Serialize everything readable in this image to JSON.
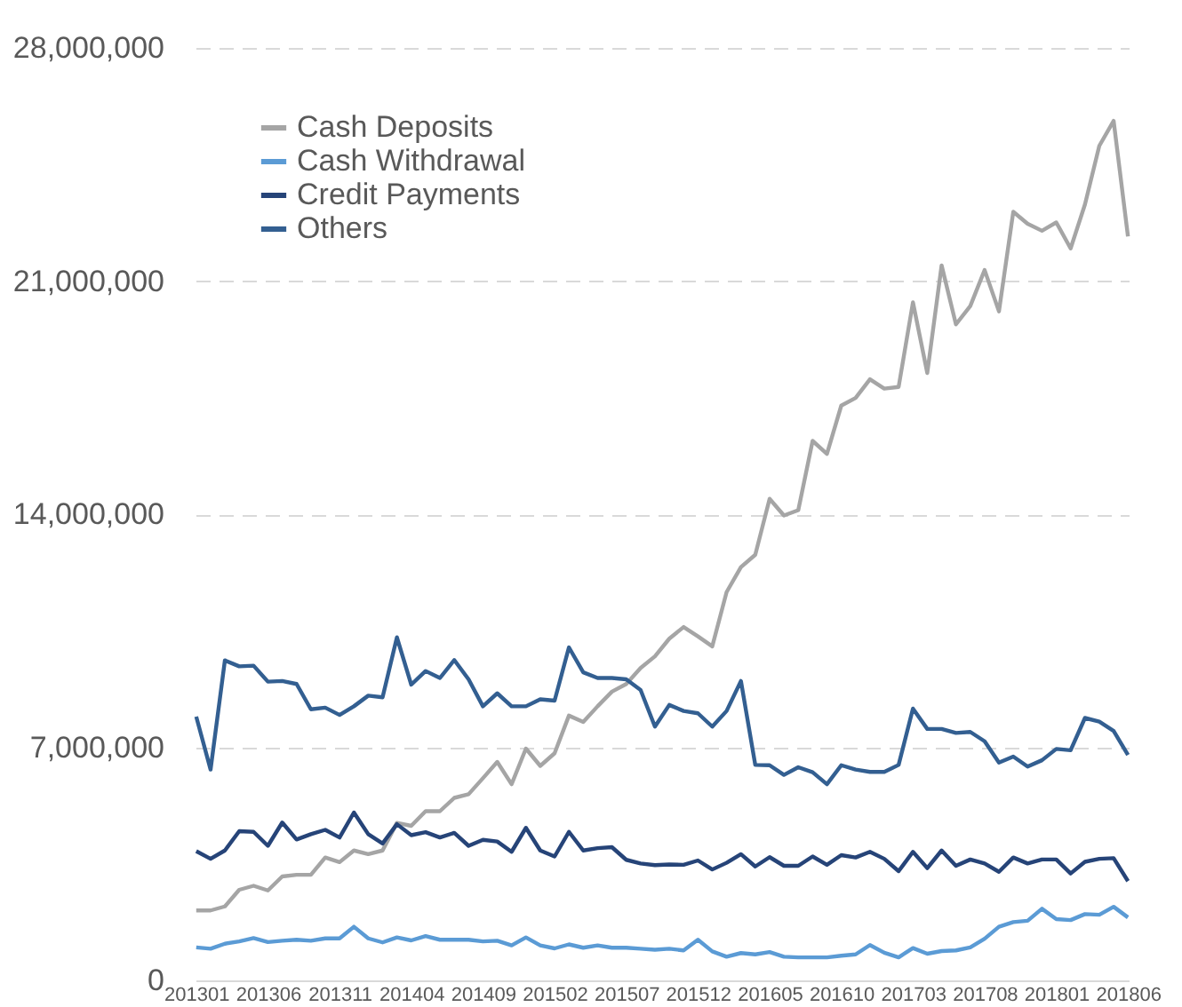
{
  "chart_data": {
    "type": "line",
    "categories": [
      "201301",
      null,
      null,
      null,
      null,
      "201306",
      null,
      null,
      null,
      null,
      "201311",
      null,
      null,
      null,
      null,
      "201404",
      null,
      null,
      null,
      null,
      "201409",
      null,
      null,
      null,
      null,
      "201502",
      null,
      null,
      null,
      null,
      "201507",
      null,
      null,
      null,
      null,
      "201512",
      null,
      null,
      null,
      null,
      "201605",
      null,
      null,
      null,
      null,
      "201610",
      null,
      null,
      null,
      null,
      "201703",
      null,
      null,
      null,
      null,
      "201708",
      null,
      null,
      null,
      null,
      "201801",
      null,
      null,
      null,
      null,
      "201806"
    ],
    "series": [
      {
        "name": "Cash Deposits",
        "color": "#a5a5a5",
        "values": [
          2100000,
          2100000,
          2220000,
          2720000,
          2840000,
          2700000,
          3120000,
          3170000,
          3170000,
          3690000,
          3550000,
          3900000,
          3790000,
          3900000,
          4730000,
          4640000,
          5080000,
          5080000,
          5480000,
          5590000,
          6070000,
          6560000,
          5890000,
          6960000,
          6440000,
          6820000,
          7950000,
          7760000,
          8230000,
          8670000,
          8900000,
          9380000,
          9730000,
          10260000,
          10610000,
          10330000,
          10030000,
          11660000,
          12410000,
          12780000,
          14460000,
          13960000,
          14120000,
          16200000,
          15810000,
          17260000,
          17490000,
          18050000,
          17770000,
          17820000,
          20360000,
          18240000,
          21470000,
          19700000,
          20250000,
          21330000,
          20090000,
          23080000,
          22720000,
          22510000,
          22760000,
          21980000,
          23300000,
          25060000,
          25810000,
          22340000
        ]
      },
      {
        "name": "Cash Withdrawal",
        "color": "#5b9bd5",
        "values": [
          990000,
          950000,
          1100000,
          1170000,
          1270000,
          1150000,
          1190000,
          1220000,
          1190000,
          1260000,
          1260000,
          1610000,
          1260000,
          1140000,
          1290000,
          1200000,
          1330000,
          1220000,
          1220000,
          1220000,
          1170000,
          1190000,
          1050000,
          1290000,
          1050000,
          960000,
          1080000,
          980000,
          1050000,
          980000,
          980000,
          950000,
          920000,
          950000,
          900000,
          1220000,
          870000,
          710000,
          820000,
          780000,
          850000,
          710000,
          690000,
          690000,
          690000,
          740000,
          780000,
          1060000,
          830000,
          690000,
          970000,
          800000,
          880000,
          900000,
          990000,
          1250000,
          1610000,
          1750000,
          1790000,
          2150000,
          1840000,
          1810000,
          1990000,
          1970000,
          2210000,
          1890000
        ]
      },
      {
        "name": "Credit Payments",
        "color": "#264478",
        "values": [
          3880000,
          3650000,
          3900000,
          4480000,
          4460000,
          4040000,
          4740000,
          4230000,
          4390000,
          4520000,
          4290000,
          5040000,
          4390000,
          4110000,
          4690000,
          4360000,
          4450000,
          4290000,
          4430000,
          4040000,
          4220000,
          4170000,
          3860000,
          4580000,
          3900000,
          3720000,
          4460000,
          3900000,
          3970000,
          4000000,
          3620000,
          3510000,
          3460000,
          3480000,
          3470000,
          3600000,
          3330000,
          3530000,
          3790000,
          3420000,
          3700000,
          3440000,
          3440000,
          3720000,
          3470000,
          3760000,
          3690000,
          3860000,
          3650000,
          3280000,
          3860000,
          3370000,
          3900000,
          3440000,
          3630000,
          3510000,
          3260000,
          3690000,
          3510000,
          3630000,
          3630000,
          3210000,
          3560000,
          3650000,
          3670000,
          2980000
        ]
      },
      {
        "name": "Others",
        "color": "#335f91",
        "values": [
          7920000,
          6330000,
          9610000,
          9430000,
          9450000,
          8970000,
          8990000,
          8900000,
          8140000,
          8190000,
          7970000,
          8230000,
          8550000,
          8500000,
          10300000,
          8880000,
          9290000,
          9080000,
          9620000,
          9040000,
          8230000,
          8620000,
          8230000,
          8230000,
          8440000,
          8400000,
          10000000,
          9250000,
          9080000,
          9080000,
          9040000,
          8720000,
          7620000,
          8270000,
          8090000,
          8020000,
          7620000,
          8090000,
          8990000,
          6470000,
          6460000,
          6170000,
          6400000,
          6250000,
          5890000,
          6460000,
          6330000,
          6260000,
          6260000,
          6470000,
          8160000,
          7550000,
          7550000,
          7430000,
          7460000,
          7180000,
          6540000,
          6720000,
          6420000,
          6610000,
          6950000,
          6910000,
          7880000,
          7770000,
          7490000,
          6770000
        ]
      }
    ],
    "ylim": [
      0,
      28000000
    ],
    "yticks": [
      0,
      {
        "value": 7000000,
        "label": "7,000,000"
      },
      {
        "value": 14000000,
        "label": "14,000,000"
      },
      {
        "value": 21000000,
        "label": "21,000,000"
      },
      {
        "value": 28000000,
        "label": "28,000,000"
      }
    ],
    "grid": "y",
    "legend": "top left"
  }
}
